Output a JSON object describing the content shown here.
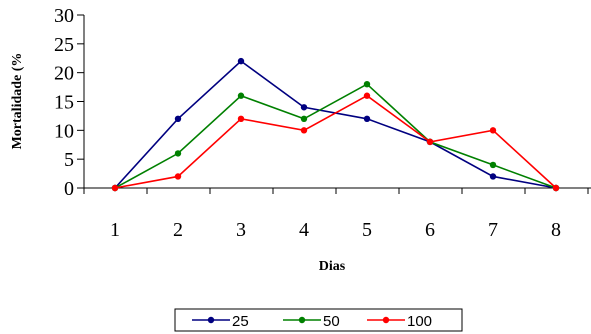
{
  "chart_data": {
    "type": "line",
    "title": "",
    "xlabel": "Dias",
    "ylabel": "Mortalidade (%",
    "x": [
      1,
      2,
      3,
      4,
      5,
      6,
      7,
      8
    ],
    "x_tick_labels": [
      "1",
      "2",
      "3",
      "4",
      "5",
      "6",
      "7",
      "8"
    ],
    "ylim": [
      0,
      30
    ],
    "y_ticks": [
      0,
      5,
      10,
      15,
      20,
      25,
      30
    ],
    "y_tick_labels": [
      "0",
      "5",
      "10",
      "15",
      "20",
      "25",
      "30"
    ],
    "grid": false,
    "legend_position": "bottom",
    "series": [
      {
        "name": "25",
        "color": "#000080",
        "values": [
          0,
          12,
          22,
          14,
          12,
          8,
          2,
          0
        ]
      },
      {
        "name": "50",
        "color": "#008000",
        "values": [
          0,
          6,
          16,
          12,
          18,
          8,
          4,
          0
        ]
      },
      {
        "name": "100",
        "color": "#ff0000",
        "values": [
          0,
          2,
          12,
          10,
          16,
          8,
          10,
          0
        ]
      }
    ]
  }
}
